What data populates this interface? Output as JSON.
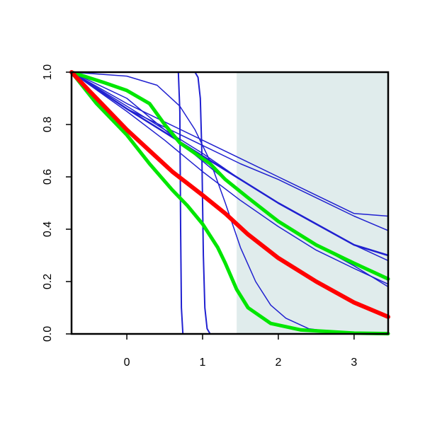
{
  "chart_data": {
    "type": "line",
    "title": "",
    "xlabel": "",
    "ylabel": "",
    "xlim": [
      -0.73,
      3.45
    ],
    "ylim": [
      0,
      1
    ],
    "x_ticks": [
      0,
      1,
      2,
      3
    ],
    "x_tick_labels": [
      "0",
      "1",
      "2",
      "3"
    ],
    "y_ticks": [
      0,
      0.2,
      0.4,
      0.6,
      0.8,
      1.0
    ],
    "y_tick_labels": [
      "0.0",
      "0.2",
      "0.4",
      "0.6",
      "0.8",
      "1.0"
    ],
    "grid": false,
    "shaded_region": {
      "x_from": 1.45,
      "x_to": 3.45,
      "color": "#e0ecec"
    },
    "series": [
      {
        "color": "#2020d0",
        "width": 2,
        "points": [
          [
            -0.73,
            1.0
          ],
          [
            0.68,
            1.0
          ],
          [
            0.7,
            0.85
          ],
          [
            0.71,
            0.4
          ],
          [
            0.72,
            0.1
          ],
          [
            0.74,
            0.0
          ],
          [
            3.45,
            0.0
          ]
        ]
      },
      {
        "color": "#2020d0",
        "width": 2,
        "points": [
          [
            -0.73,
            1.0
          ],
          [
            0.9,
            1.0
          ],
          [
            0.94,
            0.98
          ],
          [
            0.97,
            0.9
          ],
          [
            0.99,
            0.7
          ],
          [
            1.0,
            0.5
          ],
          [
            1.01,
            0.3
          ],
          [
            1.03,
            0.1
          ],
          [
            1.06,
            0.02
          ],
          [
            1.1,
            0.0
          ],
          [
            3.45,
            0.0
          ]
        ]
      },
      {
        "color": "#2020d0",
        "width": 1.5,
        "points": [
          [
            -0.73,
            1.0
          ],
          [
            0.0,
            0.985
          ],
          [
            0.4,
            0.95
          ],
          [
            0.7,
            0.87
          ],
          [
            0.9,
            0.78
          ],
          [
            1.1,
            0.66
          ],
          [
            1.3,
            0.5
          ],
          [
            1.5,
            0.33
          ],
          [
            1.7,
            0.2
          ],
          [
            1.9,
            0.11
          ],
          [
            2.1,
            0.06
          ],
          [
            2.4,
            0.02
          ],
          [
            2.8,
            0.005
          ],
          [
            3.45,
            0.0
          ]
        ]
      },
      {
        "color": "#2020d0",
        "width": 1.5,
        "points": [
          [
            -0.73,
            1.0
          ],
          [
            0.0,
            0.86
          ],
          [
            0.5,
            0.79
          ],
          [
            1.0,
            0.72
          ],
          [
            1.5,
            0.65
          ],
          [
            2.0,
            0.59
          ],
          [
            2.5,
            0.52
          ],
          [
            3.0,
            0.45
          ],
          [
            3.45,
            0.395
          ]
        ]
      },
      {
        "color": "#2020d0",
        "width": 1.5,
        "points": [
          [
            -0.73,
            1.0
          ],
          [
            0.0,
            0.88
          ],
          [
            0.5,
            0.81
          ],
          [
            1.0,
            0.74
          ],
          [
            1.5,
            0.67
          ],
          [
            2.0,
            0.6
          ],
          [
            2.5,
            0.53
          ],
          [
            3.0,
            0.46
          ],
          [
            3.45,
            0.45
          ]
        ]
      },
      {
        "color": "#2020d0",
        "width": 1.5,
        "points": [
          [
            -0.73,
            1.0
          ],
          [
            0.0,
            0.87
          ],
          [
            0.5,
            0.78
          ],
          [
            1.0,
            0.69
          ],
          [
            1.5,
            0.59
          ],
          [
            2.0,
            0.5
          ],
          [
            2.5,
            0.42
          ],
          [
            3.0,
            0.34
          ],
          [
            3.45,
            0.28
          ]
        ]
      },
      {
        "color": "#2020d0",
        "width": 2.5,
        "points": [
          [
            -0.73,
            1.0
          ],
          [
            0.0,
            0.86
          ],
          [
            0.5,
            0.77
          ],
          [
            1.0,
            0.68
          ],
          [
            1.5,
            0.59
          ],
          [
            2.0,
            0.5
          ],
          [
            2.5,
            0.42
          ],
          [
            3.0,
            0.34
          ],
          [
            3.45,
            0.3
          ]
        ]
      },
      {
        "color": "#2020d0",
        "width": 1.5,
        "points": [
          [
            -0.73,
            1.0
          ],
          [
            0.0,
            0.85
          ],
          [
            0.5,
            0.74
          ],
          [
            1.0,
            0.62
          ],
          [
            1.5,
            0.51
          ],
          [
            2.0,
            0.41
          ],
          [
            2.5,
            0.32
          ],
          [
            3.0,
            0.25
          ],
          [
            3.45,
            0.19
          ]
        ]
      },
      {
        "color": "#2020d0",
        "width": 1.5,
        "points": [
          [
            -0.73,
            1.0
          ],
          [
            0.0,
            0.9
          ],
          [
            0.5,
            0.78
          ],
          [
            1.0,
            0.66
          ],
          [
            1.5,
            0.54
          ],
          [
            2.0,
            0.43
          ],
          [
            2.5,
            0.34
          ],
          [
            3.0,
            0.26
          ],
          [
            3.45,
            0.18
          ]
        ]
      },
      {
        "color": "#00e600",
        "width": 5,
        "points": [
          [
            -0.73,
            1.0
          ],
          [
            -0.3,
            0.96
          ],
          [
            0.0,
            0.93
          ],
          [
            0.3,
            0.88
          ],
          [
            0.5,
            0.8
          ],
          [
            0.7,
            0.73
          ],
          [
            0.9,
            0.69
          ],
          [
            1.1,
            0.65
          ],
          [
            1.3,
            0.59
          ],
          [
            1.6,
            0.52
          ],
          [
            2.0,
            0.43
          ],
          [
            2.5,
            0.34
          ],
          [
            3.0,
            0.27
          ],
          [
            3.45,
            0.21
          ]
        ]
      },
      {
        "color": "#00e600",
        "width": 5,
        "points": [
          [
            -0.73,
            1.0
          ],
          [
            -0.4,
            0.88
          ],
          [
            0.0,
            0.76
          ],
          [
            0.3,
            0.65
          ],
          [
            0.6,
            0.55
          ],
          [
            0.8,
            0.49
          ],
          [
            1.0,
            0.42
          ],
          [
            1.2,
            0.33
          ],
          [
            1.3,
            0.27
          ],
          [
            1.45,
            0.17
          ],
          [
            1.6,
            0.1
          ],
          [
            1.9,
            0.04
          ],
          [
            2.3,
            0.015
          ],
          [
            3.0,
            0.003
          ],
          [
            3.45,
            0.001
          ]
        ]
      },
      {
        "color": "#ff0000",
        "width": 6,
        "points": [
          [
            -0.73,
            1.0
          ],
          [
            -0.5,
            0.93
          ],
          [
            -0.2,
            0.84
          ],
          [
            0.0,
            0.78
          ],
          [
            0.3,
            0.7
          ],
          [
            0.6,
            0.62
          ],
          [
            1.0,
            0.53
          ],
          [
            1.3,
            0.46
          ],
          [
            1.6,
            0.38
          ],
          [
            2.0,
            0.29
          ],
          [
            2.5,
            0.2
          ],
          [
            3.0,
            0.12
          ],
          [
            3.45,
            0.065
          ]
        ]
      }
    ]
  }
}
